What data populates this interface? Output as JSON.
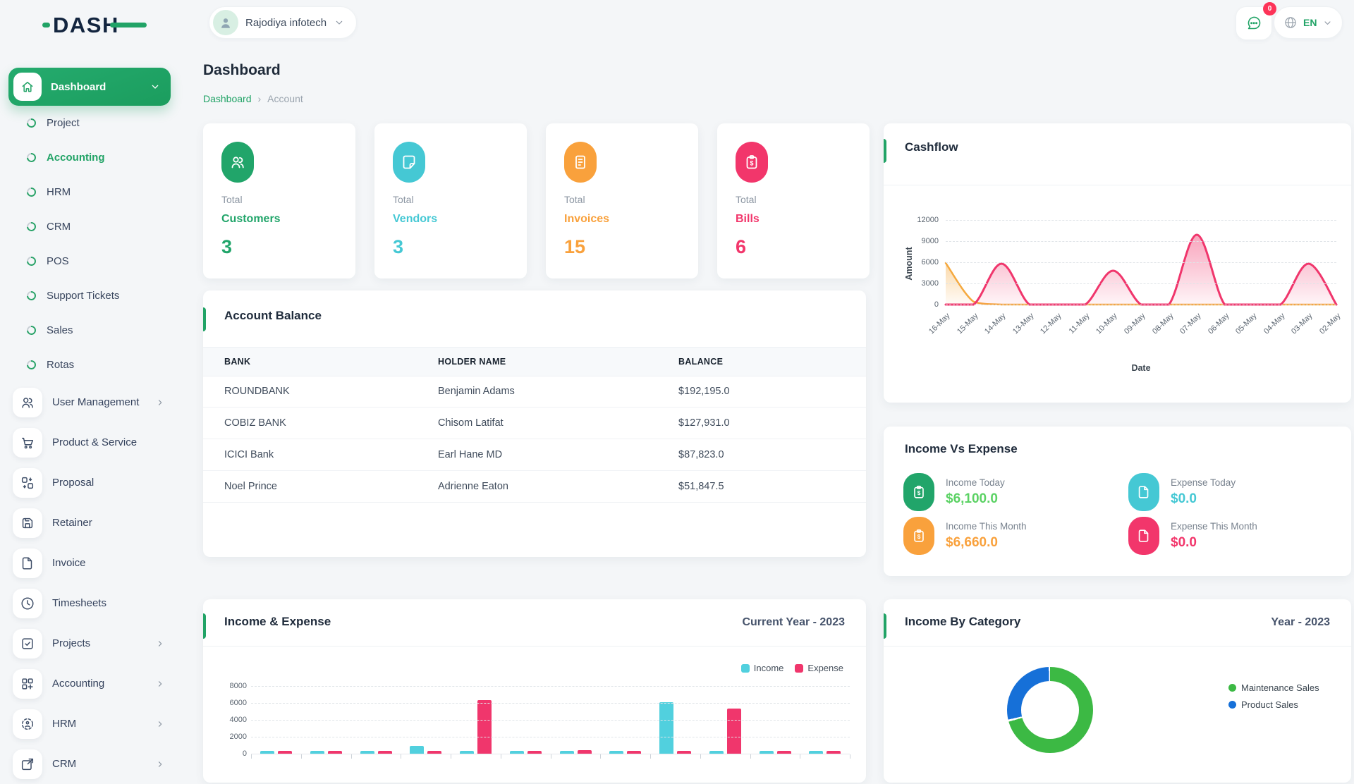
{
  "brand": {
    "name": "DASH",
    "accent_color": "#21a366",
    "navy_color": "#13253f"
  },
  "header": {
    "company": {
      "name": "Rajodiya infotech",
      "avatar_icon": "person-icon",
      "chevron_icon": "chevron-down-icon"
    },
    "messages": {
      "icon": "chat-icon",
      "badge": "0"
    },
    "language": {
      "icon": "globe-icon",
      "code": "EN",
      "chevron_icon": "chevron-down-icon"
    }
  },
  "sidebar": {
    "active": {
      "label": "Dashboard",
      "icon": "home-icon",
      "chevron_icon": "chevron-down-icon"
    },
    "submenu": [
      {
        "label": "Project",
        "active": false
      },
      {
        "label": "Accounting",
        "active": true
      },
      {
        "label": "HRM",
        "active": false
      },
      {
        "label": "CRM",
        "active": false
      },
      {
        "label": "POS",
        "active": false
      },
      {
        "label": "Support Tickets",
        "active": false
      },
      {
        "label": "Sales",
        "active": false
      },
      {
        "label": "Rotas",
        "active": false
      }
    ],
    "menu": [
      {
        "label": "User Management",
        "icon": "users-icon",
        "has_children": true
      },
      {
        "label": "Product & Service",
        "icon": "cart-icon",
        "has_children": false
      },
      {
        "label": "Proposal",
        "icon": "swap-icon",
        "has_children": false
      },
      {
        "label": "Retainer",
        "icon": "save-icon",
        "has_children": false
      },
      {
        "label": "Invoice",
        "icon": "file-icon",
        "has_children": false
      },
      {
        "label": "Timesheets",
        "icon": "clock-icon",
        "has_children": false
      },
      {
        "label": "Projects",
        "icon": "check-square-icon",
        "has_children": true
      },
      {
        "label": "Accounting",
        "icon": "grid-plus-icon",
        "has_children": true
      },
      {
        "label": "HRM",
        "icon": "scan-icon",
        "has_children": true
      },
      {
        "label": "CRM",
        "icon": "share-square-icon",
        "has_children": true
      }
    ]
  },
  "page": {
    "title": "Dashboard",
    "breadcrumb": {
      "link": "Dashboard",
      "current": "Account"
    }
  },
  "stats": [
    {
      "prefix": "Total",
      "label": "Customers",
      "value": "3",
      "color": "#21a56a",
      "icon": "users-icon"
    },
    {
      "prefix": "Total",
      "label": "Vendors",
      "value": "3",
      "color": "#45c8d4",
      "icon": "note-icon"
    },
    {
      "prefix": "Total",
      "label": "Invoices",
      "value": "15",
      "color": "#f9a13c",
      "icon": "invoice-icon"
    },
    {
      "prefix": "Total",
      "label": "Bills",
      "value": "6",
      "color": "#f2366b",
      "icon": "clipboard-dollar-icon"
    }
  ],
  "account_balance": {
    "title": "Account Balance",
    "columns": [
      "BANK",
      "HOLDER NAME",
      "BALANCE"
    ],
    "rows": [
      [
        "ROUNDBANK",
        "Benjamin Adams",
        "$192,195.0"
      ],
      [
        "COBIZ BANK",
        "Chisom Latifat",
        "$127,931.0"
      ],
      [
        "ICICI Bank",
        "Earl Hane MD",
        "$87,823.0"
      ],
      [
        "Noel Prince",
        "Adrienne Eaton",
        "$51,847.5"
      ]
    ]
  },
  "cashflow": {
    "title": "Cashflow"
  },
  "income_vs_expense": {
    "title": "Income Vs Expense",
    "items": [
      {
        "icon": "clipboard-dollar-icon",
        "tile_color": "#21a56a",
        "label": "Income Today",
        "value": "$6,100.0",
        "value_color": "#5bd264"
      },
      {
        "icon": "file-icon",
        "tile_color": "#45c8d4",
        "label": "Expense Today",
        "value": "$0.0",
        "value_color": "#45c8d4"
      },
      {
        "icon": "clipboard-dollar-icon",
        "tile_color": "#f9a13c",
        "label": "Income This Month",
        "value": "$6,660.0",
        "value_color": "#f9a13c"
      },
      {
        "icon": "file-icon",
        "tile_color": "#f2366b",
        "label": "Expense This Month",
        "value": "$0.0",
        "value_color": "#f2366b"
      }
    ]
  },
  "income_expense": {
    "title": "Income & Expense",
    "period": "Current Year - 2023",
    "legend": [
      {
        "label": "Income",
        "color": "#51d0de"
      },
      {
        "label": "Expense",
        "color": "#f0366c"
      }
    ]
  },
  "income_by_category": {
    "title": "Income By Category",
    "period": "Year - 2023",
    "legend": [
      {
        "label": "Maintenance Sales",
        "color": "#3cb944"
      },
      {
        "label": "Product Sales",
        "color": "#1670d8"
      }
    ]
  },
  "chart_data": [
    {
      "id": "cashflow",
      "type": "area",
      "title": "Cashflow",
      "xlabel": "Date",
      "ylabel": "Amount",
      "ylim": [
        0,
        12000
      ],
      "yticks": [
        0,
        3000,
        6000,
        9000,
        12000
      ],
      "grid": "dashed-horizontal",
      "categories": [
        "16-May",
        "15-May",
        "14-May",
        "13-May",
        "12-May",
        "11-May",
        "10-May",
        "09-May",
        "08-May",
        "07-May",
        "06-May",
        "05-May",
        "04-May",
        "03-May",
        "02-May"
      ],
      "series": [
        {
          "name": "orange-series",
          "color": "#f5a93f",
          "values": [
            5900,
            400,
            0,
            0,
            0,
            0,
            0,
            0,
            0,
            0,
            0,
            0,
            0,
            0,
            0
          ]
        },
        {
          "name": "pink-series",
          "color": "#f0366c",
          "values": [
            0,
            0,
            5800,
            0,
            0,
            0,
            4800,
            0,
            0,
            9900,
            0,
            0,
            0,
            5800,
            0
          ]
        }
      ]
    },
    {
      "id": "income_expense",
      "type": "bar",
      "title": "Income & Expense",
      "period": "Current Year - 2023",
      "ylim": [
        0,
        8000
      ],
      "yticks": [
        0,
        2000,
        4000,
        6000,
        8000
      ],
      "grid": "dashed-horizontal",
      "legend_position": "top-right",
      "categories": [
        "",
        "",
        "",
        "",
        "",
        "",
        "",
        "",
        "",
        "",
        "",
        ""
      ],
      "series": [
        {
          "name": "Income",
          "color": "#51d0de",
          "values": [
            200,
            120,
            120,
            950,
            120,
            120,
            200,
            120,
            6100,
            120,
            120,
            120
          ]
        },
        {
          "name": "Expense",
          "color": "#f0366c",
          "values": [
            150,
            120,
            120,
            120,
            6300,
            120,
            450,
            120,
            120,
            5300,
            120,
            120
          ]
        }
      ]
    },
    {
      "id": "income_by_category",
      "type": "pie",
      "title": "Income By Category",
      "period": "Year - 2023",
      "labels": [
        "Maintenance Sales",
        "Product Sales"
      ],
      "values_percent": [
        71,
        29
      ],
      "colors": [
        "#3cb944",
        "#1670d8"
      ],
      "legend_position": "right"
    }
  ]
}
